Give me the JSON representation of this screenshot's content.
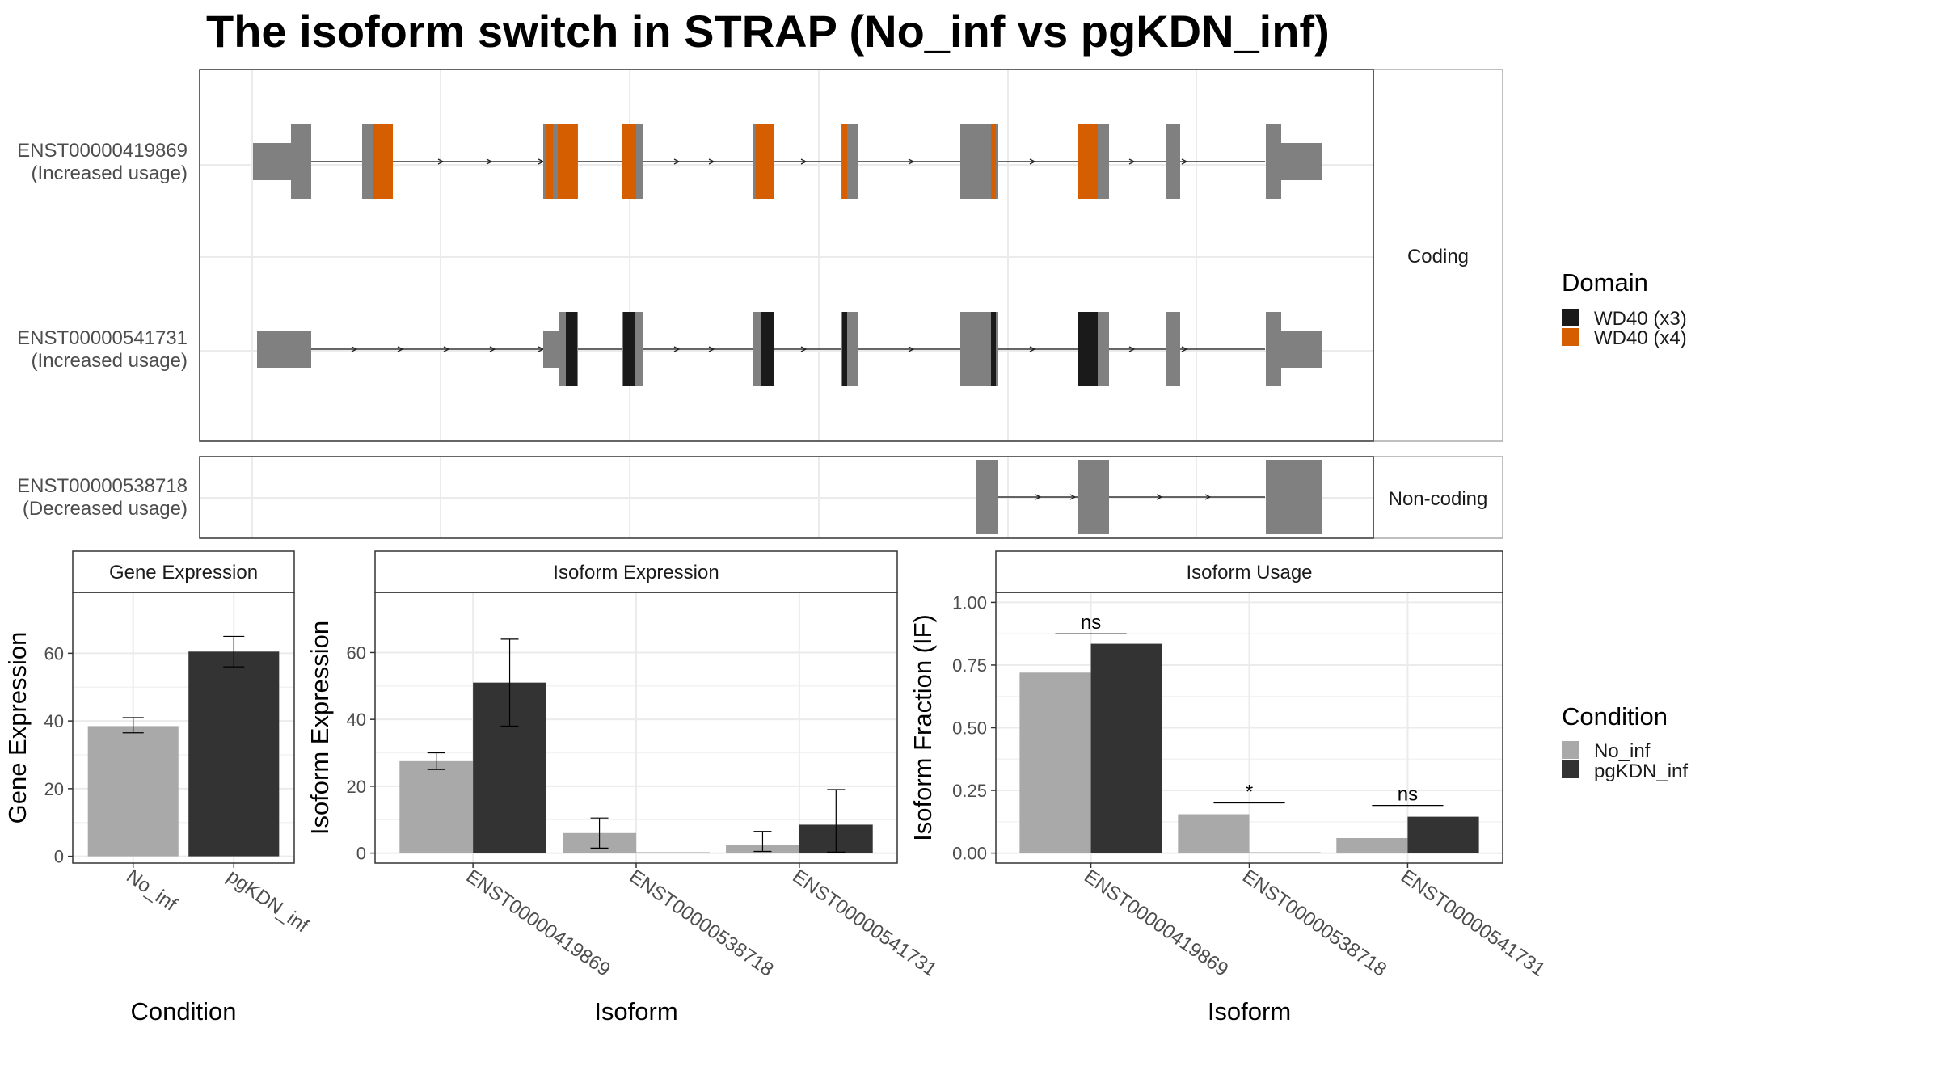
{
  "title": "The isoform switch in STRAP (No_inf vs pgKDN_inf)",
  "colors": {
    "exon": "#808080",
    "wd40_x3": "#1a1a1a",
    "wd40_x4": "#d55e00",
    "no_inf": "#a9a9a9",
    "pgkdn_inf": "#333333",
    "panel_border": "#333333",
    "strip_border": "#aaaaaa",
    "grid": "#ebebeb"
  },
  "structure": {
    "facets": {
      "coding": "Coding",
      "noncoding": "Non-coding"
    },
    "transcripts": [
      {
        "id": "ENST00000419869",
        "usage": "(Increased usage)"
      },
      {
        "id": "ENST00000541731",
        "usage": "(Increased usage)"
      },
      {
        "id": "ENST00000538718",
        "usage": "(Decreased usage)"
      }
    ],
    "legend": {
      "title": "Domain",
      "items": [
        "WD40 (x3)",
        "WD40 (x4)"
      ]
    }
  },
  "condition_legend": {
    "title": "Condition",
    "items": [
      "No_inf",
      "pgKDN_inf"
    ]
  },
  "chart_data": [
    {
      "type": "bar",
      "title": "Gene Expression",
      "xlabel": "Condition",
      "ylabel": "Gene Expression",
      "categories": [
        "No_inf",
        "pgKDN_inf"
      ],
      "values": [
        38.5,
        60.5
      ],
      "error": [
        [
          36.5,
          41
        ],
        [
          56,
          65
        ]
      ],
      "ylim": [
        -2,
        78
      ],
      "yticks": [
        0,
        20,
        40,
        60
      ],
      "ytick_labels": [
        "0",
        "20",
        "40",
        "60"
      ]
    },
    {
      "type": "bar",
      "title": "Isoform Expression",
      "xlabel": "Isoform",
      "ylabel": "Isoform Expression",
      "categories": [
        "ENST00000419869",
        "ENST00000538718",
        "ENST00000541731"
      ],
      "series": [
        {
          "name": "No_inf",
          "values": [
            27.5,
            6,
            2.5
          ],
          "error": [
            [
              25,
              30
            ],
            [
              1.5,
              10.5
            ],
            [
              0.5,
              6.5
            ]
          ]
        },
        {
          "name": "pgKDN_inf",
          "values": [
            51,
            0.2,
            8.5
          ],
          "error": [
            [
              38,
              64
            ],
            null,
            [
              0.3,
              19
            ]
          ]
        }
      ],
      "ylim": [
        -3,
        78
      ],
      "yticks": [
        0,
        20,
        40,
        60
      ],
      "ytick_labels": [
        "0",
        "20",
        "40",
        "60"
      ]
    },
    {
      "type": "bar",
      "title": "Isoform Usage",
      "xlabel": "Isoform",
      "ylabel": "Isoform Fraction (IF)",
      "categories": [
        "ENST00000419869",
        "ENST00000538718",
        "ENST00000541731"
      ],
      "series": [
        {
          "name": "No_inf",
          "values": [
            0.72,
            0.155,
            0.06
          ]
        },
        {
          "name": "pgKDN_inf",
          "values": [
            0.835,
            0.0,
            0.145
          ]
        }
      ],
      "significance": [
        "ns",
        "*",
        "ns"
      ],
      "significance_level": [
        0.875,
        0.2,
        0.19
      ],
      "ylim": [
        -0.04,
        1.04
      ],
      "yticks": [
        0,
        0.25,
        0.5,
        0.75,
        1.0
      ],
      "ytick_labels": [
        "0.00",
        "0.25",
        "0.50",
        "0.75",
        "1.00"
      ]
    }
  ]
}
